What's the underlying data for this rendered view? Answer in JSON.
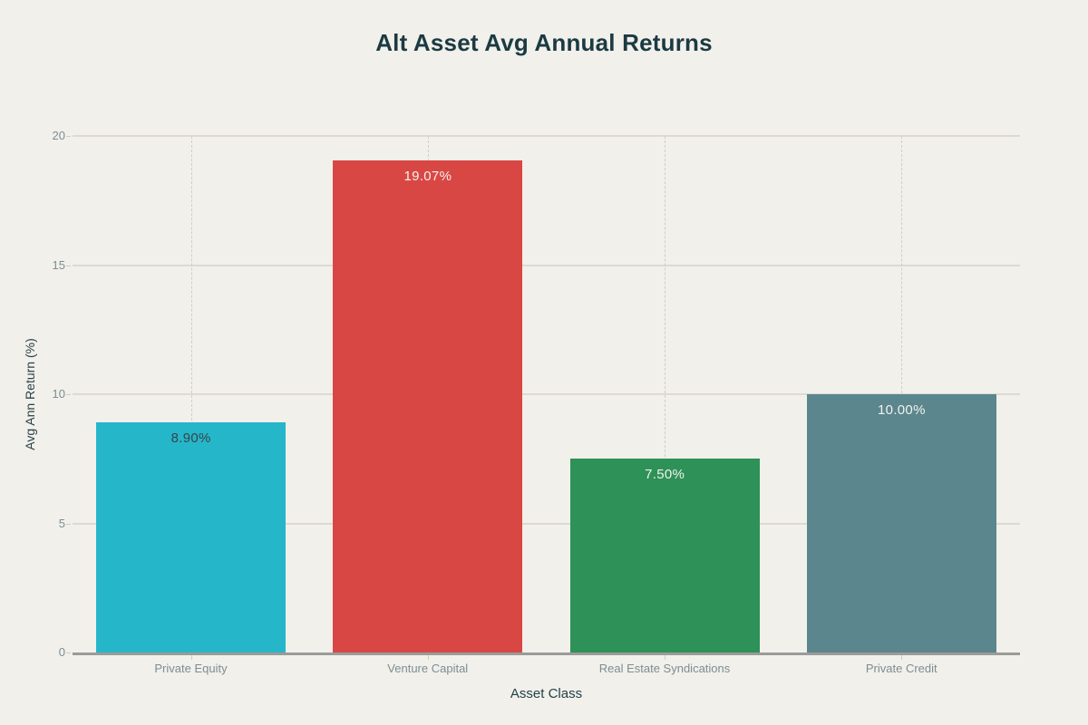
{
  "title": "Alt Asset Avg Annual Returns",
  "colors": {
    "background": "#f1f0ea",
    "title": "#1b3a43",
    "tick_text": "#7d8d94",
    "axis_title_text": "#24404a",
    "axis_line": "#9b9b99",
    "gridline": "#dcdad2",
    "gridline_dashed": "#d0cec6"
  },
  "chart_data": {
    "type": "bar",
    "title": "Alt Asset Avg Annual Returns",
    "xlabel": "Asset Class",
    "ylabel": "Avg Ann Return (%)",
    "categories": [
      "Private Equity",
      "Venture Capital",
      "Real Estate Syndications",
      "Private Credit"
    ],
    "values": [
      8.9,
      19.07,
      7.5,
      10.0
    ],
    "value_labels": [
      "8.90%",
      "19.07%",
      "7.50%",
      "10.00%"
    ],
    "bar_colors": [
      "#26b6c9",
      "#d94745",
      "#2e9158",
      "#5b868e"
    ],
    "bar_label_colors": [
      "#36454b",
      "#f3f2ec",
      "#f3f2ec",
      "#f3f2ec"
    ],
    "ylim": [
      0,
      20
    ],
    "yticks": [
      0,
      5,
      10,
      15,
      20
    ],
    "grid_horizontal": "solid",
    "grid_vertical": "dashed-at-category-centers",
    "legend": "none"
  }
}
